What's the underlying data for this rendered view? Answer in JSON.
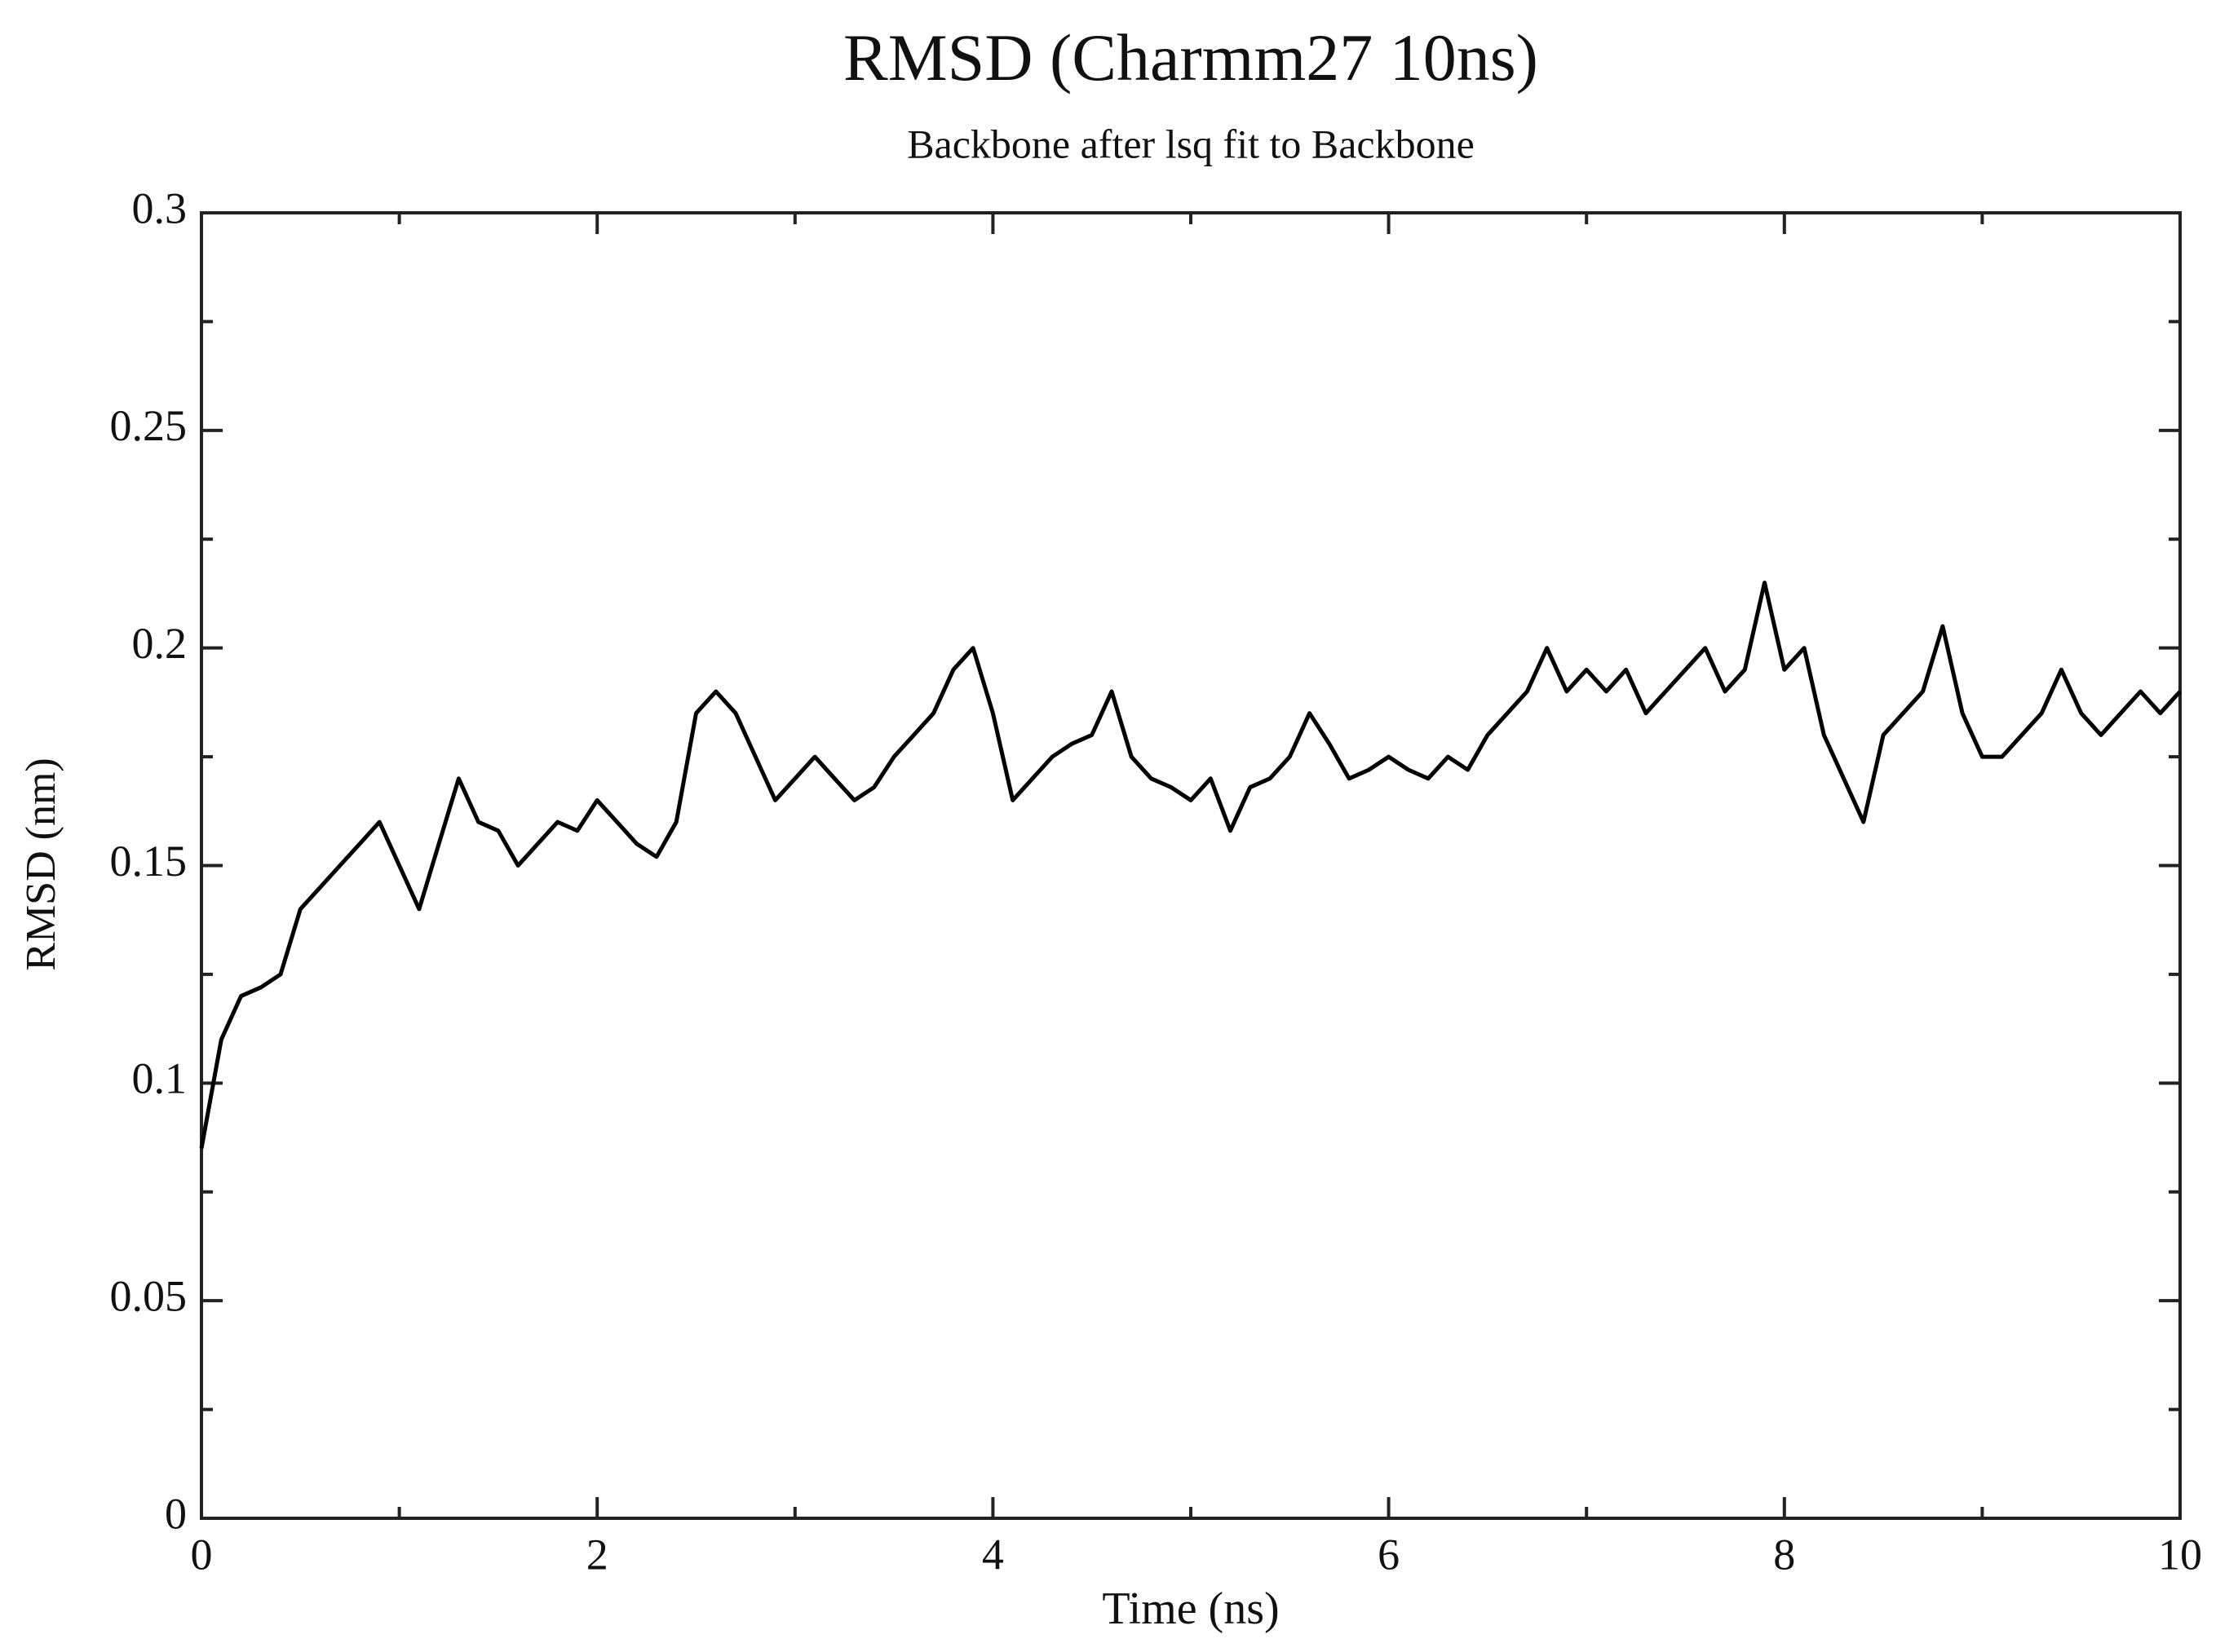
{
  "chart_data": {
    "type": "line",
    "title": "RMSD (Charmm27 10ns)",
    "subtitle": "Backbone after lsq fit to Backbone",
    "xlabel": "Time (ns)",
    "ylabel": "RMSD (nm)",
    "color": "#000000",
    "x": [
      0,
      0.1,
      0.2,
      0.3,
      0.4,
      0.5,
      0.6,
      0.7,
      0.8,
      0.9,
      1,
      1.1,
      1.2,
      1.3,
      1.4,
      1.5,
      1.6,
      1.7,
      1.8,
      1.9,
      2,
      2.1,
      2.2,
      2.3,
      2.4,
      2.5,
      2.6,
      2.7,
      2.8,
      2.9,
      3,
      3.1,
      3.2,
      3.3,
      3.4,
      3.5,
      3.6,
      3.7,
      3.8,
      3.9,
      4,
      4.1,
      4.2,
      4.3,
      4.4,
      4.5,
      4.6,
      4.7,
      4.8,
      4.9,
      5,
      5.1,
      5.2,
      5.3,
      5.4,
      5.5,
      5.6,
      5.7,
      5.8,
      5.9,
      6,
      6.1,
      6.2,
      6.3,
      6.4,
      6.5,
      6.6,
      6.7,
      6.8,
      6.9,
      7,
      7.1,
      7.2,
      7.3,
      7.4,
      7.5,
      7.6,
      7.7,
      7.8,
      7.9,
      8,
      8.1,
      8.2,
      8.3,
      8.4,
      8.5,
      8.6,
      8.7,
      8.8,
      8.9,
      9,
      9.1,
      9.2,
      9.3,
      9.4,
      9.5,
      9.6,
      9.7,
      9.8,
      9.9,
      10
    ],
    "values": [
      0.085,
      0.11,
      0.12,
      0.122,
      0.125,
      0.14,
      0.145,
      0.15,
      0.155,
      0.16,
      0.15,
      0.14,
      0.155,
      0.17,
      0.16,
      0.158,
      0.15,
      0.155,
      0.16,
      0.158,
      0.165,
      0.16,
      0.155,
      0.152,
      0.16,
      0.185,
      0.19,
      0.185,
      0.175,
      0.165,
      0.17,
      0.175,
      0.17,
      0.165,
      0.168,
      0.175,
      0.18,
      0.185,
      0.195,
      0.2,
      0.185,
      0.165,
      0.17,
      0.175,
      0.178,
      0.18,
      0.19,
      0.175,
      0.17,
      0.168,
      0.165,
      0.17,
      0.158,
      0.168,
      0.17,
      0.175,
      0.185,
      0.178,
      0.17,
      0.172,
      0.175,
      0.172,
      0.17,
      0.175,
      0.172,
      0.18,
      0.185,
      0.19,
      0.2,
      0.19,
      0.195,
      0.19,
      0.195,
      0.185,
      0.19,
      0.195,
      0.2,
      0.19,
      0.195,
      0.215,
      0.195,
      0.2,
      0.18,
      0.17,
      0.16,
      0.18,
      0.185,
      0.19,
      0.205,
      0.185,
      0.175,
      0.175,
      0.18,
      0.185,
      0.195,
      0.185,
      0.18,
      0.185,
      0.19,
      0.185,
      0.19
    ],
    "xlim": [
      0,
      10
    ],
    "xticks": [
      0,
      2,
      4,
      6,
      8,
      10
    ],
    "ylim": [
      0,
      0.3
    ],
    "yticks": [
      0,
      0.05,
      0.1,
      0.15,
      0.2,
      0.25,
      0.3
    ],
    "grid": false
  }
}
